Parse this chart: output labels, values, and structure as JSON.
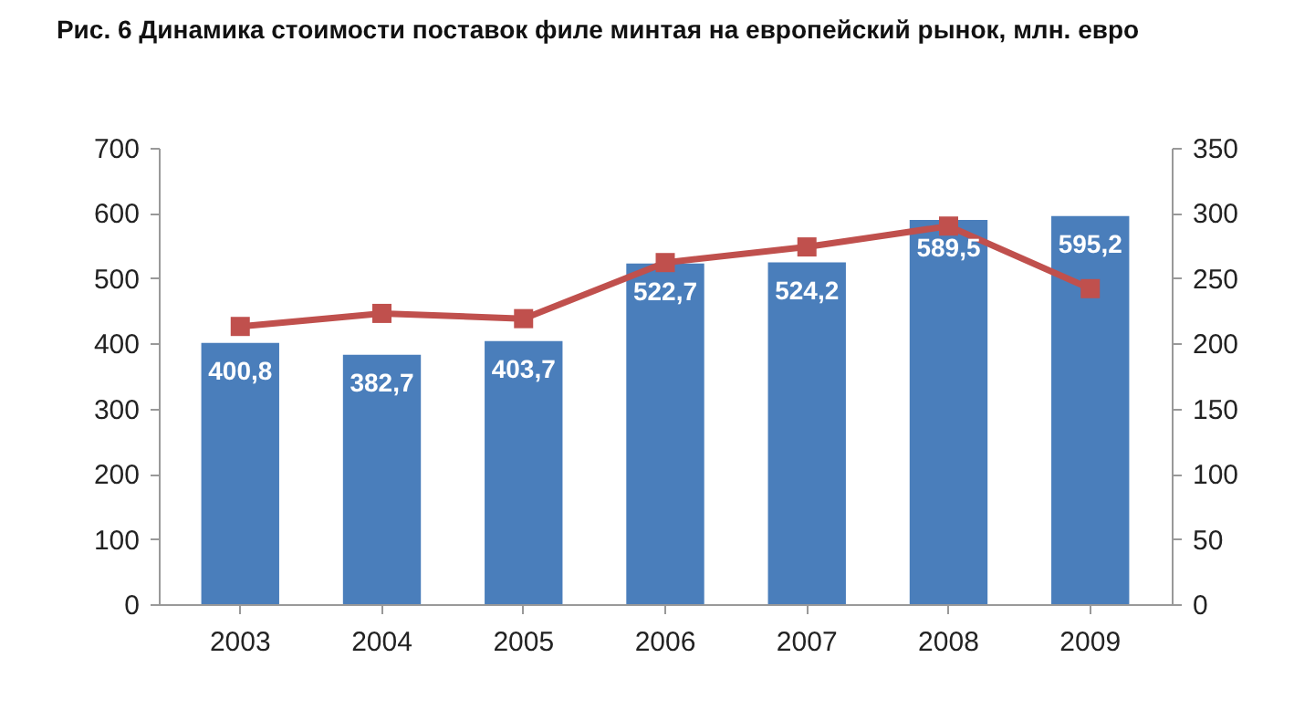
{
  "chart_data": {
    "type": "bar",
    "title": "Рис. 6 Динамика стоимости поставок филе минтая на европейский рынок, млн. евро",
    "categories": [
      "2003",
      "2004",
      "2005",
      "2006",
      "2007",
      "2008",
      "2009"
    ],
    "series": [
      {
        "color": "#4a7ebb",
        "values": [
          400.8,
          382.7,
          403.7,
          522.7,
          524.2,
          589.5,
          595.2
        ],
        "value_labels": [
          "400,8",
          "382,7",
          "403,7",
          "522,7",
          "524,2",
          "589,5",
          "595,2"
        ]
      },
      {
        "type": "line",
        "axis": "y2",
        "color": "#c0504d",
        "marker": "square",
        "values": [
          213,
          223,
          219,
          262,
          274,
          290,
          242
        ]
      }
    ],
    "ylim": [
      0,
      700
    ],
    "yticks": [
      0,
      100,
      200,
      300,
      400,
      500,
      600,
      700
    ],
    "y2lim": [
      0,
      350
    ],
    "y2ticks": [
      0,
      50,
      100,
      150,
      200,
      250,
      300,
      350
    ],
    "grid": false
  }
}
